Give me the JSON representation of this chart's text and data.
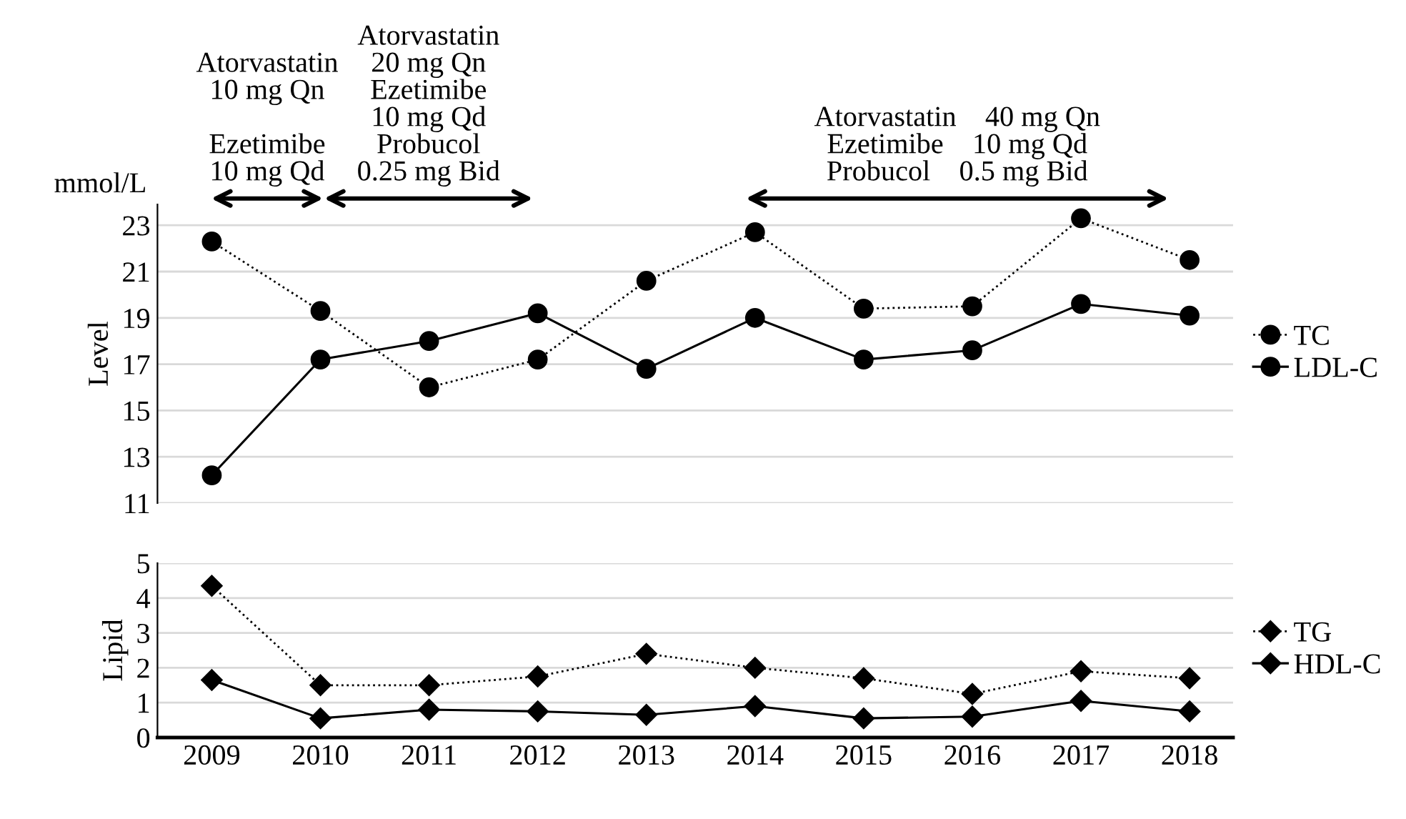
{
  "chart_data": [
    {
      "type": "line",
      "ylabel": "Level",
      "annotations": [
        "mmol/L",
        "Atorvastatin\n10 mg Qn\n\nEzetimibe\n10 mg Qd",
        "Atorvastatin\n20 mg Qn\nEzetimibe\n10 mg Qd\nProbucol\n0.25 mg Bid",
        "Atorvastatin    40 mg Qn\nEzetimibe    10 mg Qd\nProbucol    0.5 mg Bid"
      ],
      "x": [
        2009,
        2010,
        2011,
        2012,
        2013,
        2014,
        2015,
        2016,
        2017,
        2018
      ],
      "xlim": [
        2008.5,
        2018.4
      ],
      "ylim": [
        11,
        23.9
      ],
      "yticks": [
        11,
        13,
        15,
        17,
        19,
        21,
        23
      ],
      "xticks": [
        2009,
        2010,
        2011,
        2012,
        2013,
        2014,
        2015,
        2016,
        2017,
        2018
      ],
      "tick_labels": "y",
      "grid": "y",
      "legend": "right",
      "marker": "circle",
      "series": [
        {
          "name": "TC",
          "color": "#000000",
          "line_style": "dotted",
          "values": [
            22.3,
            19.3,
            16.0,
            17.2,
            20.6,
            22.7,
            19.4,
            19.5,
            23.3,
            21.5
          ]
        },
        {
          "name": "LDL-C",
          "color": "#000000",
          "line_style": "solid",
          "values": [
            12.2,
            17.2,
            18.0,
            19.2,
            16.8,
            19.0,
            17.2,
            17.6,
            19.6,
            19.1
          ]
        }
      ]
    },
    {
      "type": "line",
      "ylabel": "Lipid",
      "x": [
        2009,
        2010,
        2011,
        2012,
        2013,
        2014,
        2015,
        2016,
        2017,
        2018
      ],
      "xlim": [
        2008.5,
        2018.4
      ],
      "ylim": [
        0,
        5
      ],
      "yticks": [
        0,
        1,
        2,
        3,
        4,
        5
      ],
      "xticks": [
        2009,
        2010,
        2011,
        2012,
        2013,
        2014,
        2015,
        2016,
        2017,
        2018
      ],
      "grid": "y",
      "legend": "right",
      "marker": "diamond",
      "series": [
        {
          "name": "TG",
          "color": "#000000",
          "line_style": "dotted",
          "values": [
            4.35,
            1.5,
            1.5,
            1.75,
            2.4,
            2.0,
            1.7,
            1.25,
            1.9,
            1.7
          ]
        },
        {
          "name": "HDL-C",
          "color": "#000000",
          "line_style": "solid",
          "values": [
            1.65,
            0.55,
            0.8,
            0.75,
            0.65,
            0.9,
            0.55,
            0.6,
            1.05,
            0.75
          ]
        }
      ]
    }
  ]
}
